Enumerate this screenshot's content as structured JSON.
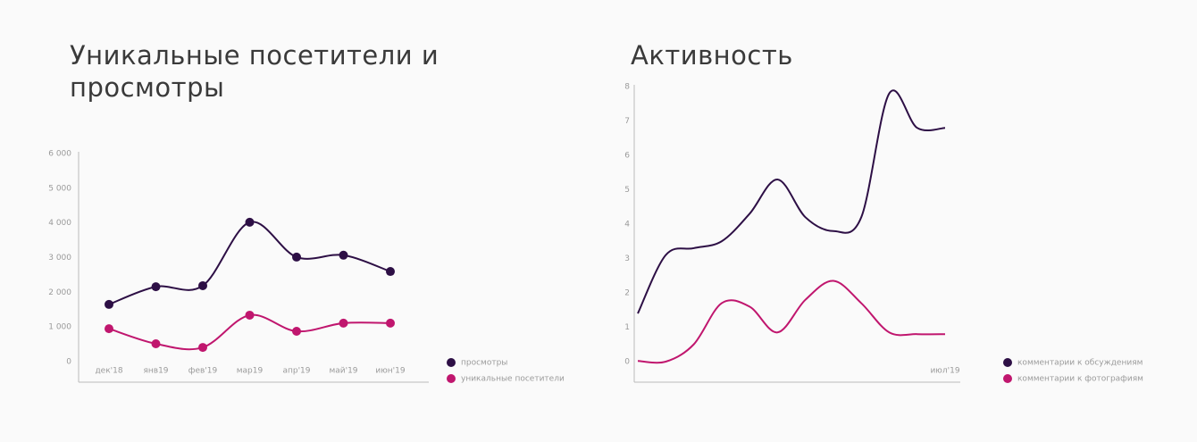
{
  "chart_data": [
    {
      "type": "line",
      "title": "Уникальные посетители и просмотры",
      "smooth": true,
      "markers": true,
      "categories": [
        "дек'18",
        "янв19",
        "фев'19",
        "мар19",
        "апр'19",
        "май'19",
        "июн'19"
      ],
      "series": [
        {
          "name": "просмотры",
          "color": "#2d0f45",
          "values": [
            1650,
            2160,
            2190,
            4020,
            3015,
            3070,
            2600
          ]
        },
        {
          "name": "уникальные посетители",
          "color": "#c0166e",
          "values": [
            950,
            515,
            410,
            1340,
            875,
            1110,
            1110
          ]
        }
      ],
      "ylim": [
        0,
        6000
      ],
      "yticks": [
        {
          "value": 0,
          "label": "0"
        },
        {
          "value": 1000,
          "label": "1 000"
        },
        {
          "value": 2000,
          "label": "2 000"
        },
        {
          "value": 3000,
          "label": "3 000"
        },
        {
          "value": 4000,
          "label": "4 000"
        },
        {
          "value": 5000,
          "label": "5 000"
        },
        {
          "value": 6000,
          "label": "6 000"
        }
      ],
      "legend": "bottom-right"
    },
    {
      "type": "line",
      "title": "Активность",
      "smooth": true,
      "markers": false,
      "categories": [
        null,
        null,
        null,
        null,
        null,
        null,
        null,
        null,
        null,
        null,
        null,
        "июл'19"
      ],
      "series": [
        {
          "name": "комментарии к обсуждениям",
          "color": "#2d0f45",
          "values": [
            1.4,
            3.1,
            3.3,
            3.5,
            4.3,
            5.3,
            4.2,
            3.8,
            4.2,
            7.8,
            6.8,
            6.8
          ]
        },
        {
          "name": "комментарии к фотографиям",
          "color": "#c0166e",
          "values": [
            0.02,
            0,
            0.5,
            1.7,
            1.6,
            0.85,
            1.8,
            2.35,
            1.7,
            0.85,
            0.8,
            0.8
          ]
        }
      ],
      "ylim": [
        0,
        8
      ],
      "yticks": [
        0,
        1,
        2,
        3,
        4,
        5,
        6,
        7,
        8
      ],
      "legend": "bottom-right"
    }
  ]
}
